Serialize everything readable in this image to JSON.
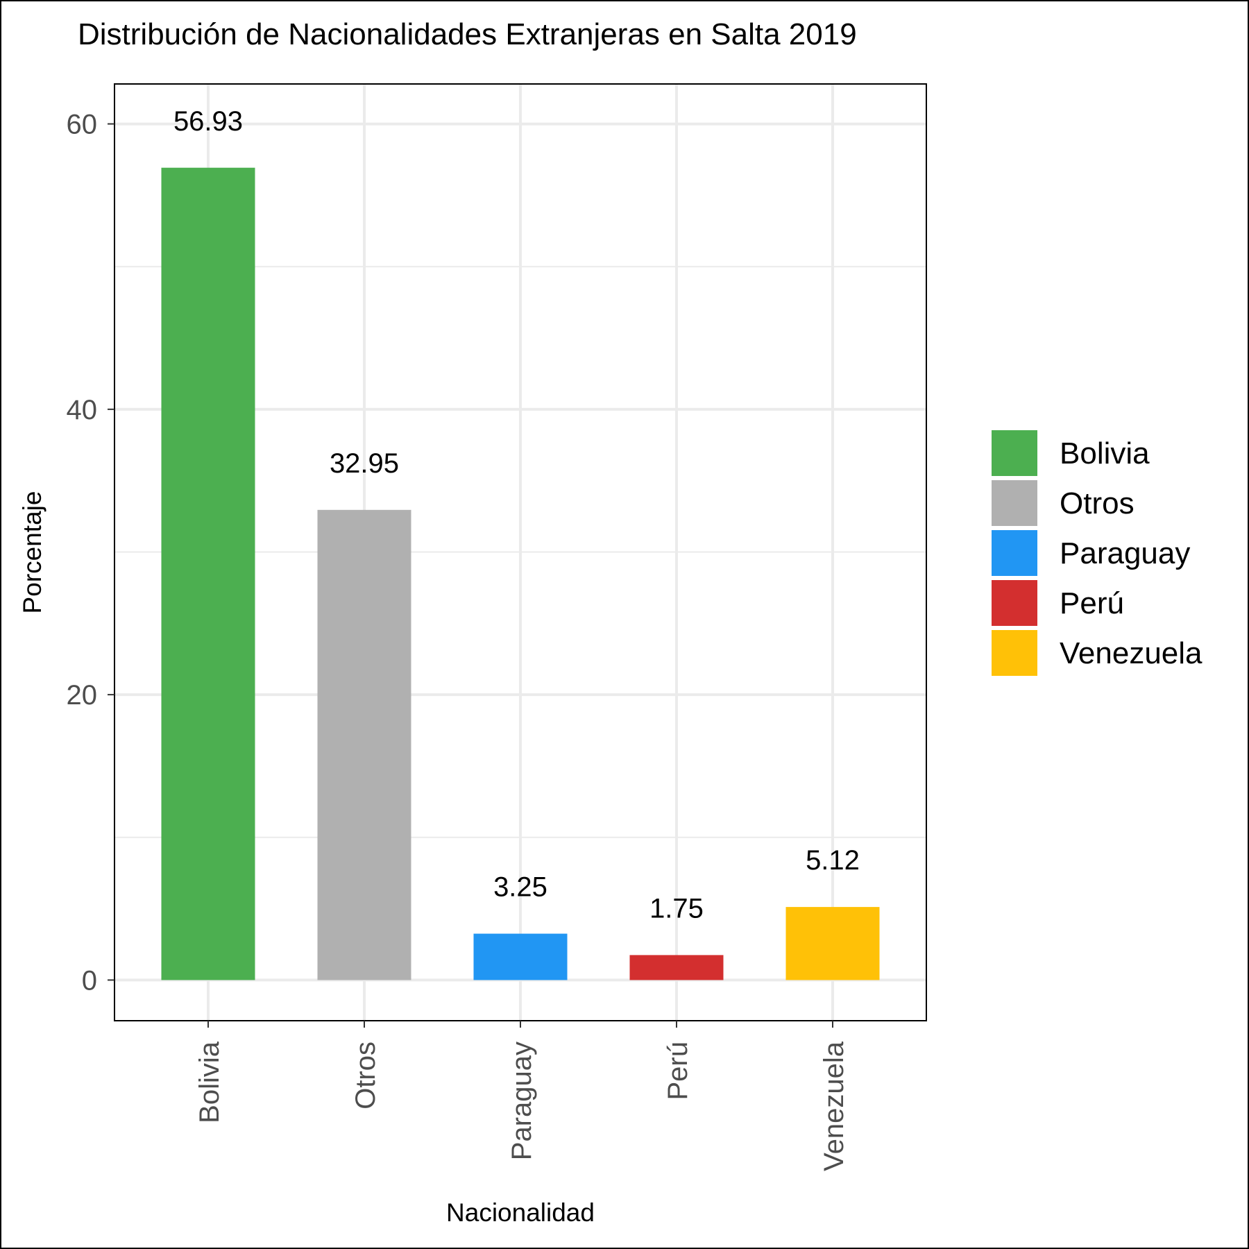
{
  "chart_data": {
    "type": "bar",
    "title": "Distribución de Nacionalidades Extranjeras en Salta 2019",
    "xlabel": "Nacionalidad",
    "ylabel": "Porcentaje",
    "categories": [
      "Bolivia",
      "Otros",
      "Paraguay",
      "Perú",
      "Venezuela"
    ],
    "values": [
      56.93,
      32.95,
      3.25,
      1.75,
      5.12
    ],
    "data_labels": [
      "56.93",
      "32.95",
      "3.25",
      "1.75",
      "5.12"
    ],
    "colors": [
      "#4CAF50",
      "#B0B0B0",
      "#2196F3",
      "#D32F2F",
      "#FFC107"
    ],
    "ylim": [
      -2.85,
      62.8
    ],
    "yticks": [
      0,
      20,
      40,
      60
    ],
    "ytick_labels": [
      "0",
      "20",
      "40",
      "60"
    ],
    "grid": true,
    "legend": {
      "position": "right",
      "entries": [
        "Bolivia",
        "Otros",
        "Paraguay",
        "Perú",
        "Venezuela"
      ]
    }
  }
}
